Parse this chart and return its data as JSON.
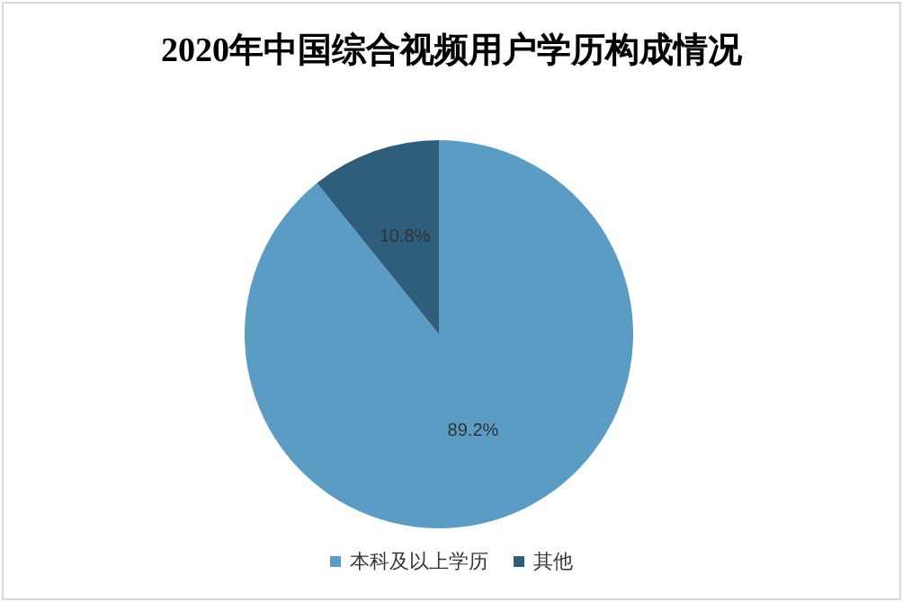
{
  "chart_data": {
    "type": "pie",
    "title": "2020年中国综合视频用户学历构成情况",
    "categories": [
      "本科及以上学历",
      "其他"
    ],
    "values": [
      89.2,
      10.8
    ],
    "colors": [
      "#5b9cc4",
      "#2f5d7c"
    ],
    "value_labels": [
      "89.2%",
      "10.8%"
    ],
    "legend": "bottom"
  }
}
